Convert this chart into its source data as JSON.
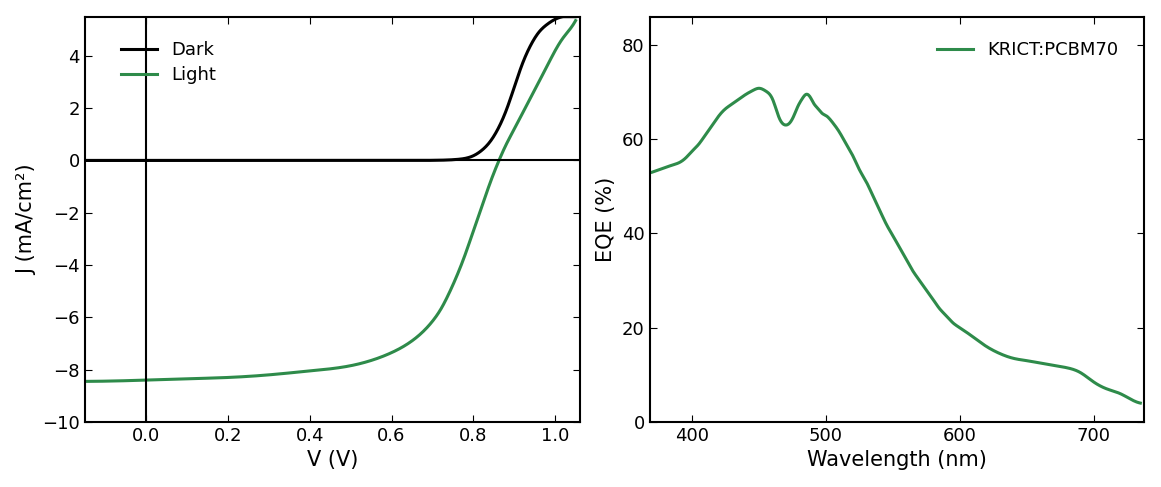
{
  "green_color": "#2e8b4a",
  "black_color": "#000000",
  "left_xlabel": "V (V)",
  "left_ylabel": "J (mA/cm²)",
  "right_xlabel": "Wavelength (nm)",
  "right_ylabel": "EQE (%)",
  "legend_dark": "Dark",
  "legend_light": "Light",
  "legend_right": "KRICT:PCBM70",
  "left_xlim": [
    -0.15,
    1.06
  ],
  "left_ylim": [
    -10,
    5.5
  ],
  "right_xlim": [
    368,
    738
  ],
  "right_ylim": [
    0,
    86
  ],
  "left_xticks": [
    0.0,
    0.2,
    0.4,
    0.6,
    0.8,
    1.0
  ],
  "left_yticks": [
    -10,
    -8,
    -6,
    -4,
    -2,
    0,
    2,
    4
  ],
  "right_xticks": [
    400,
    500,
    600,
    700
  ],
  "right_yticks": [
    0,
    20,
    40,
    60,
    80
  ],
  "linewidth": 2.2,
  "dark_jv_v": [
    -0.15,
    0.0,
    0.1,
    0.2,
    0.3,
    0.4,
    0.5,
    0.6,
    0.65,
    0.7,
    0.72,
    0.74,
    0.76,
    0.78,
    0.8,
    0.82,
    0.84,
    0.86,
    0.88,
    0.9,
    0.92,
    0.94,
    0.96,
    0.98,
    1.0,
    1.02,
    1.04,
    1.05
  ],
  "dark_jv_j": [
    0.0,
    0.0,
    0.0,
    0.0,
    0.0,
    0.0,
    0.0,
    0.001,
    0.002,
    0.005,
    0.01,
    0.02,
    0.04,
    0.08,
    0.18,
    0.38,
    0.7,
    1.2,
    1.9,
    2.8,
    3.7,
    4.4,
    4.9,
    5.2,
    5.4,
    5.5,
    5.5,
    5.5
  ],
  "light_jv_v": [
    -0.15,
    0.0,
    0.1,
    0.2,
    0.3,
    0.4,
    0.5,
    0.55,
    0.6,
    0.65,
    0.68,
    0.7,
    0.72,
    0.74,
    0.76,
    0.78,
    0.8,
    0.82,
    0.84,
    0.86,
    0.88,
    0.9,
    0.92,
    0.94,
    0.96,
    0.98,
    1.0,
    1.02,
    1.04,
    1.05
  ],
  "light_jv_j": [
    -8.45,
    -8.4,
    -8.35,
    -8.3,
    -8.2,
    -8.05,
    -7.85,
    -7.65,
    -7.35,
    -6.9,
    -6.5,
    -6.15,
    -5.7,
    -5.1,
    -4.4,
    -3.6,
    -2.7,
    -1.8,
    -0.9,
    -0.1,
    0.6,
    1.2,
    1.8,
    2.4,
    3.0,
    3.6,
    4.2,
    4.7,
    5.1,
    5.35
  ],
  "eqe_wl": [
    370,
    375,
    380,
    385,
    390,
    395,
    400,
    405,
    410,
    415,
    420,
    425,
    430,
    435,
    440,
    445,
    450,
    455,
    460,
    465,
    470,
    473,
    476,
    479,
    482,
    485,
    488,
    491,
    494,
    497,
    500,
    505,
    510,
    515,
    520,
    525,
    530,
    535,
    540,
    545,
    550,
    555,
    560,
    565,
    570,
    575,
    580,
    585,
    590,
    595,
    600,
    610,
    620,
    630,
    640,
    650,
    660,
    670,
    680,
    690,
    700,
    710,
    720,
    730,
    735
  ],
  "eqe_val": [
    53,
    53.5,
    54,
    54.5,
    55,
    56,
    57.5,
    59,
    61,
    63,
    65,
    66.5,
    67.5,
    68.5,
    69.5,
    70.3,
    70.8,
    70.2,
    68.5,
    64.5,
    63.0,
    63.5,
    65.0,
    67.0,
    68.5,
    69.5,
    69.0,
    67.5,
    66.5,
    65.5,
    65.0,
    63.5,
    61.5,
    59.0,
    56.5,
    53.5,
    51.0,
    48.0,
    45.0,
    42.0,
    39.5,
    37.0,
    34.5,
    32.0,
    30.0,
    28.0,
    26.0,
    24.0,
    22.5,
    21.0,
    20.0,
    18.0,
    16.0,
    14.5,
    13.5,
    13.0,
    12.5,
    12.0,
    11.5,
    10.5,
    8.5,
    7.0,
    6.0,
    4.5,
    4.0
  ]
}
